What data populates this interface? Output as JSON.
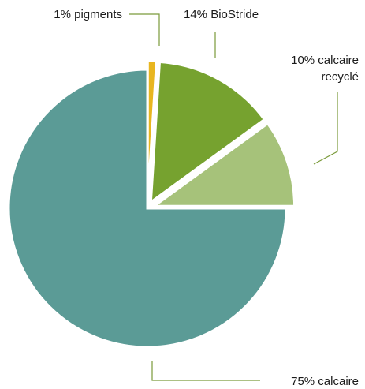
{
  "chart_data": {
    "type": "pie",
    "categories": [
      "calcaire",
      "pigments",
      "BioStride",
      "calcaire recyclé"
    ],
    "values": [
      75,
      1,
      14,
      10
    ],
    "colors": [
      "#5b9b96",
      "#e8b620",
      "#76a22f",
      "#a6c27a"
    ],
    "exploded": [
      false,
      true,
      true,
      true
    ],
    "start_angle_deg": 0,
    "direction": "clockwise",
    "labels": [
      {
        "line1": "75% calcaire",
        "line2": ""
      },
      {
        "line1": "1% pigments",
        "line2": ""
      },
      {
        "line1": "14% BioStride",
        "line2": ""
      },
      {
        "line1": "10% calcaire",
        "line2": "recyclé"
      }
    ],
    "legend": "none",
    "title": ""
  }
}
